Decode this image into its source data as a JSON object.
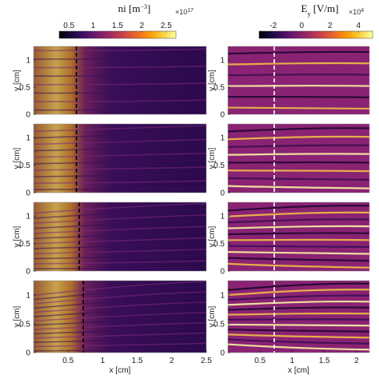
{
  "chart_data": [
    {
      "type": "heatmap",
      "title": "ni [m^-3]",
      "colorbar": {
        "ticks": [
          "0.5",
          "1",
          "1.5",
          "2",
          "2.5"
        ],
        "tick_values": [
          0.5,
          1,
          1.5,
          2,
          2.5
        ],
        "range": [
          0.3,
          2.7
        ],
        "multiplier": "×10^17",
        "colormap": "inferno"
      },
      "panels": 4,
      "xlabel": "x [cm]",
      "ylabel": "y [cm]",
      "xlim": [
        0,
        2.5
      ],
      "ylim": [
        0,
        1.25
      ],
      "xticks": [
        "0.5",
        "1",
        "1.5",
        "2",
        "2.5"
      ],
      "xtick_values": [
        0.5,
        1,
        1.5,
        2,
        2.5
      ],
      "yticks": [
        "0",
        "0.5",
        "1"
      ],
      "ytick_values": [
        0,
        0.5,
        1
      ],
      "dashed_line_x": [
        0.62,
        0.62,
        0.66,
        0.72
      ],
      "dashed_line_color": "#000000"
    },
    {
      "type": "heatmap",
      "title": "Ey [V/m]",
      "colorbar": {
        "ticks": [
          "-2",
          "0",
          "2",
          "4"
        ],
        "tick_values": [
          -2,
          0,
          2,
          4
        ],
        "range": [
          -3,
          5
        ],
        "multiplier": "×10^4",
        "colormap": "inferno"
      },
      "panels": 4,
      "xlabel": "x [cm]",
      "xlim": [
        0,
        2.2
      ],
      "xticks": [
        "0.5",
        "1",
        "1.5",
        "2"
      ],
      "xtick_values": [
        0.5,
        1,
        1.5,
        2
      ],
      "dashed_line_x": [
        0.72,
        0.72,
        0.72,
        0.72
      ],
      "dashed_line_color": "#ffffff"
    }
  ]
}
